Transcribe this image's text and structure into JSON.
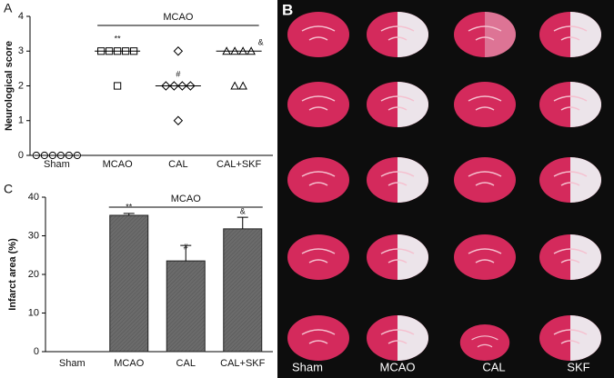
{
  "chart_data": [
    {
      "type": "dotplot",
      "panel": "A",
      "y_label": "Neurological score",
      "categories": [
        "Sham",
        "MCAO",
        "CAL",
        "CAL+SKF"
      ],
      "markers": [
        "circle",
        "square",
        "diamond",
        "triangle"
      ],
      "values": [
        [
          0,
          0,
          0,
          0,
          0,
          0
        ],
        [
          3,
          3,
          3,
          3,
          3,
          2
        ],
        [
          3,
          2,
          2,
          2,
          2,
          1
        ],
        [
          3,
          3,
          3,
          3,
          2,
          2
        ]
      ],
      "medians": [
        0,
        3,
        2,
        3
      ],
      "ylim": [
        0,
        4
      ],
      "yticks": [
        0,
        1,
        2,
        3,
        4
      ],
      "bracket": "MCAO",
      "annotations": [
        {
          "category": 1,
          "text": "**"
        },
        {
          "category": 2,
          "text": "#"
        },
        {
          "category": 3,
          "text": "&"
        }
      ]
    },
    {
      "type": "bar",
      "panel": "C",
      "y_label": "Infarct area (%)",
      "categories": [
        "Sham",
        "MCAO",
        "CAL",
        "CAL+SKF"
      ],
      "values": [
        0,
        35.3,
        23.5,
        31.8
      ],
      "errors": [
        0,
        0.5,
        4,
        3
      ],
      "color": "#6b6b6b",
      "ylim": [
        0,
        40
      ],
      "yticks": [
        0,
        10,
        20,
        30,
        40
      ],
      "bracket": "MCAO",
      "annotations": [
        {
          "category": 1,
          "text": "**"
        },
        {
          "category": 2,
          "text": "#"
        },
        {
          "category": 3,
          "text": "&"
        }
      ]
    }
  ],
  "photo": {
    "panel": "B",
    "labels": [
      "Sham",
      "MCAO",
      "CAL",
      "SKF"
    ]
  }
}
